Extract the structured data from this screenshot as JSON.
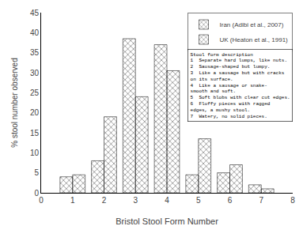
{
  "chart_data": {
    "type": "bar",
    "xlabel": "Bristol Stool Form Number",
    "ylabel": "% stool number observed",
    "x": [
      1,
      2,
      3,
      4,
      5,
      6,
      7
    ],
    "series": [
      {
        "name": "Iran (Adibi et al., 2007)",
        "color": "#f0f0f0",
        "values": [
          4.0,
          8.0,
          38.5,
          37.0,
          4.5,
          5.0,
          2.0
        ]
      },
      {
        "name": "UK (Heaton et al., 1991)",
        "color": "#b0b0b0",
        "values": [
          4.5,
          19.0,
          24.0,
          30.5,
          13.5,
          7.0,
          1.0
        ]
      }
    ],
    "xlim": [
      0,
      8
    ],
    "xticks": [
      0,
      1,
      2,
      3,
      4,
      5,
      6,
      7,
      8
    ],
    "ylim": [
      0,
      45
    ],
    "yticks": [
      0,
      5,
      10,
      15,
      20,
      25,
      30,
      35,
      40,
      45
    ],
    "grid": false,
    "legend": "upper right",
    "annotations": [
      "Stool form description\n1  Separate hard lumps, like nuts.\n2  Sausage-shaped but lumpy.\n3  Like a sausage but with cracks\non its surface.\n4  Like a sausage or snake-\nsmooth and soft.\n5  Soft blobs with clear cut edges.\n6  Fluffy pieces with ragged\nedges, a mushy stool.\n7  Watery, no solid pieces."
    ]
  }
}
